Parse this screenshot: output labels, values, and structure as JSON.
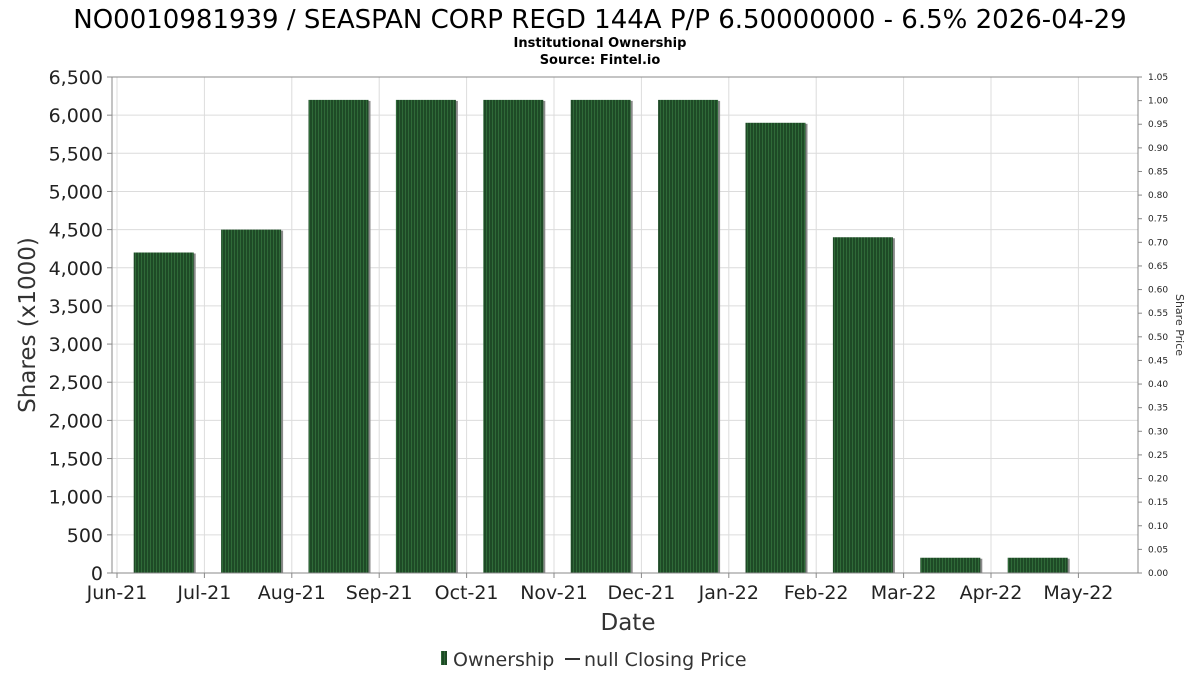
{
  "chart_data": {
    "type": "bar",
    "title": "NO0010981939 / SEASPAN CORP REGD 144A P/P 6.50000000 - 6.5% 2026-04-29",
    "subtitle_line1": "Institutional Ownership",
    "subtitle_line2": "Source: Fintel.io",
    "xlabel": "Date",
    "ylabel": "Shares (x1000)",
    "ylabel_right": "Share Price",
    "x_ticks": [
      "Jun-21",
      "Jul-21",
      "Aug-21",
      "Sep-21",
      "Oct-21",
      "Nov-21",
      "Dec-21",
      "Jan-22",
      "Feb-22",
      "Mar-22",
      "Apr-22",
      "May-22"
    ],
    "categories": [
      "Jul-21",
      "Aug-21",
      "Sep-21",
      "Oct-21",
      "Nov-21",
      "Dec-21",
      "Jan-22",
      "Feb-22",
      "Mar-22",
      "Apr-22",
      "May-22"
    ],
    "series": [
      {
        "name": "Ownership",
        "values": [
          4200,
          4500,
          6200,
          6200,
          6200,
          6200,
          6200,
          5900,
          4400,
          200,
          200
        ]
      }
    ],
    "ylim": [
      0,
      6500
    ],
    "y_ticks": [
      "0",
      "500",
      "1,000",
      "1,500",
      "2,000",
      "2,500",
      "3,000",
      "3,500",
      "4,000",
      "4,500",
      "5,000",
      "5,500",
      "6,000",
      "6,500"
    ],
    "y_right_lim": [
      0,
      1.05
    ],
    "y_right_ticks": [
      "0.00",
      "0.05",
      "0.10",
      "0.15",
      "0.20",
      "0.25",
      "0.30",
      "0.35",
      "0.40",
      "0.45",
      "0.50",
      "0.55",
      "0.60",
      "0.65",
      "0.70",
      "0.75",
      "0.80",
      "0.85",
      "0.90",
      "0.95",
      "1.00",
      "1.05"
    ],
    "legend": {
      "position": "bottom-center",
      "ownership_label": "Ownership",
      "price_label": "null Closing Price"
    },
    "colors": {
      "bar": "#1e4a26",
      "bar_stripe": "#2f6a38",
      "bar_shadow": "#8a8a8a",
      "grid": "#dcdcdc",
      "axis": "#888888"
    },
    "grid": true
  }
}
